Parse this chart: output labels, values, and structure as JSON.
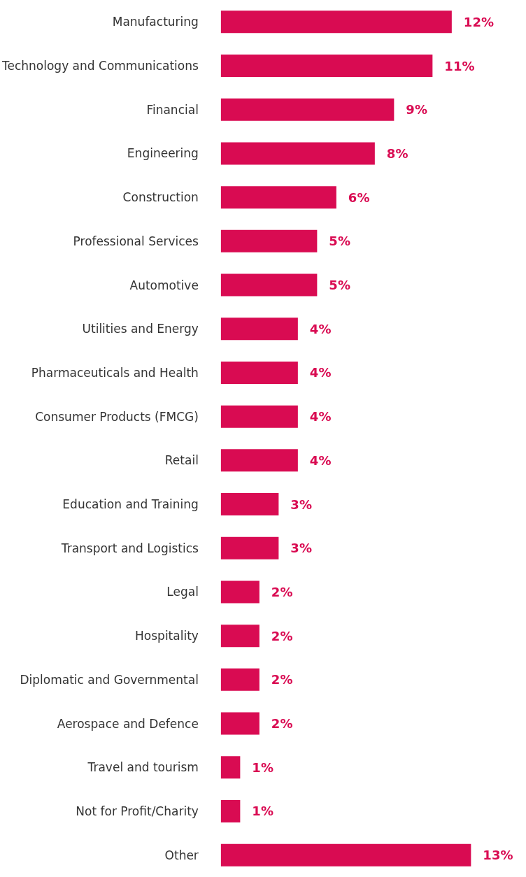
{
  "chart_data": {
    "type": "bar",
    "orientation": "horizontal",
    "categories": [
      "Manufacturing",
      "Technology and Communications",
      "Financial",
      "Engineering",
      "Construction",
      "Professional Services",
      "Automotive",
      "Utilities and Energy",
      "Pharmaceuticals and Health",
      "Consumer Products (FMCG)",
      "Retail",
      "Education and Training",
      "Transport and Logistics",
      "Legal",
      "Hospitality",
      "Diplomatic and Governmental",
      "Aerospace and Defence",
      "Travel and tourism",
      "Not for Profit/Charity",
      "Other"
    ],
    "values": [
      12,
      11,
      9,
      8,
      6,
      5,
      5,
      4,
      4,
      4,
      4,
      3,
      3,
      2,
      2,
      2,
      2,
      1,
      1,
      13
    ],
    "value_labels": [
      "12%",
      "11%",
      "9%",
      "8%",
      "6%",
      "5%",
      "5%",
      "4%",
      "4%",
      "4%",
      "4%",
      "3%",
      "3%",
      "2%",
      "2%",
      "2%",
      "2%",
      "1%",
      "1%",
      "13%"
    ],
    "color": "#d90b52"
  }
}
